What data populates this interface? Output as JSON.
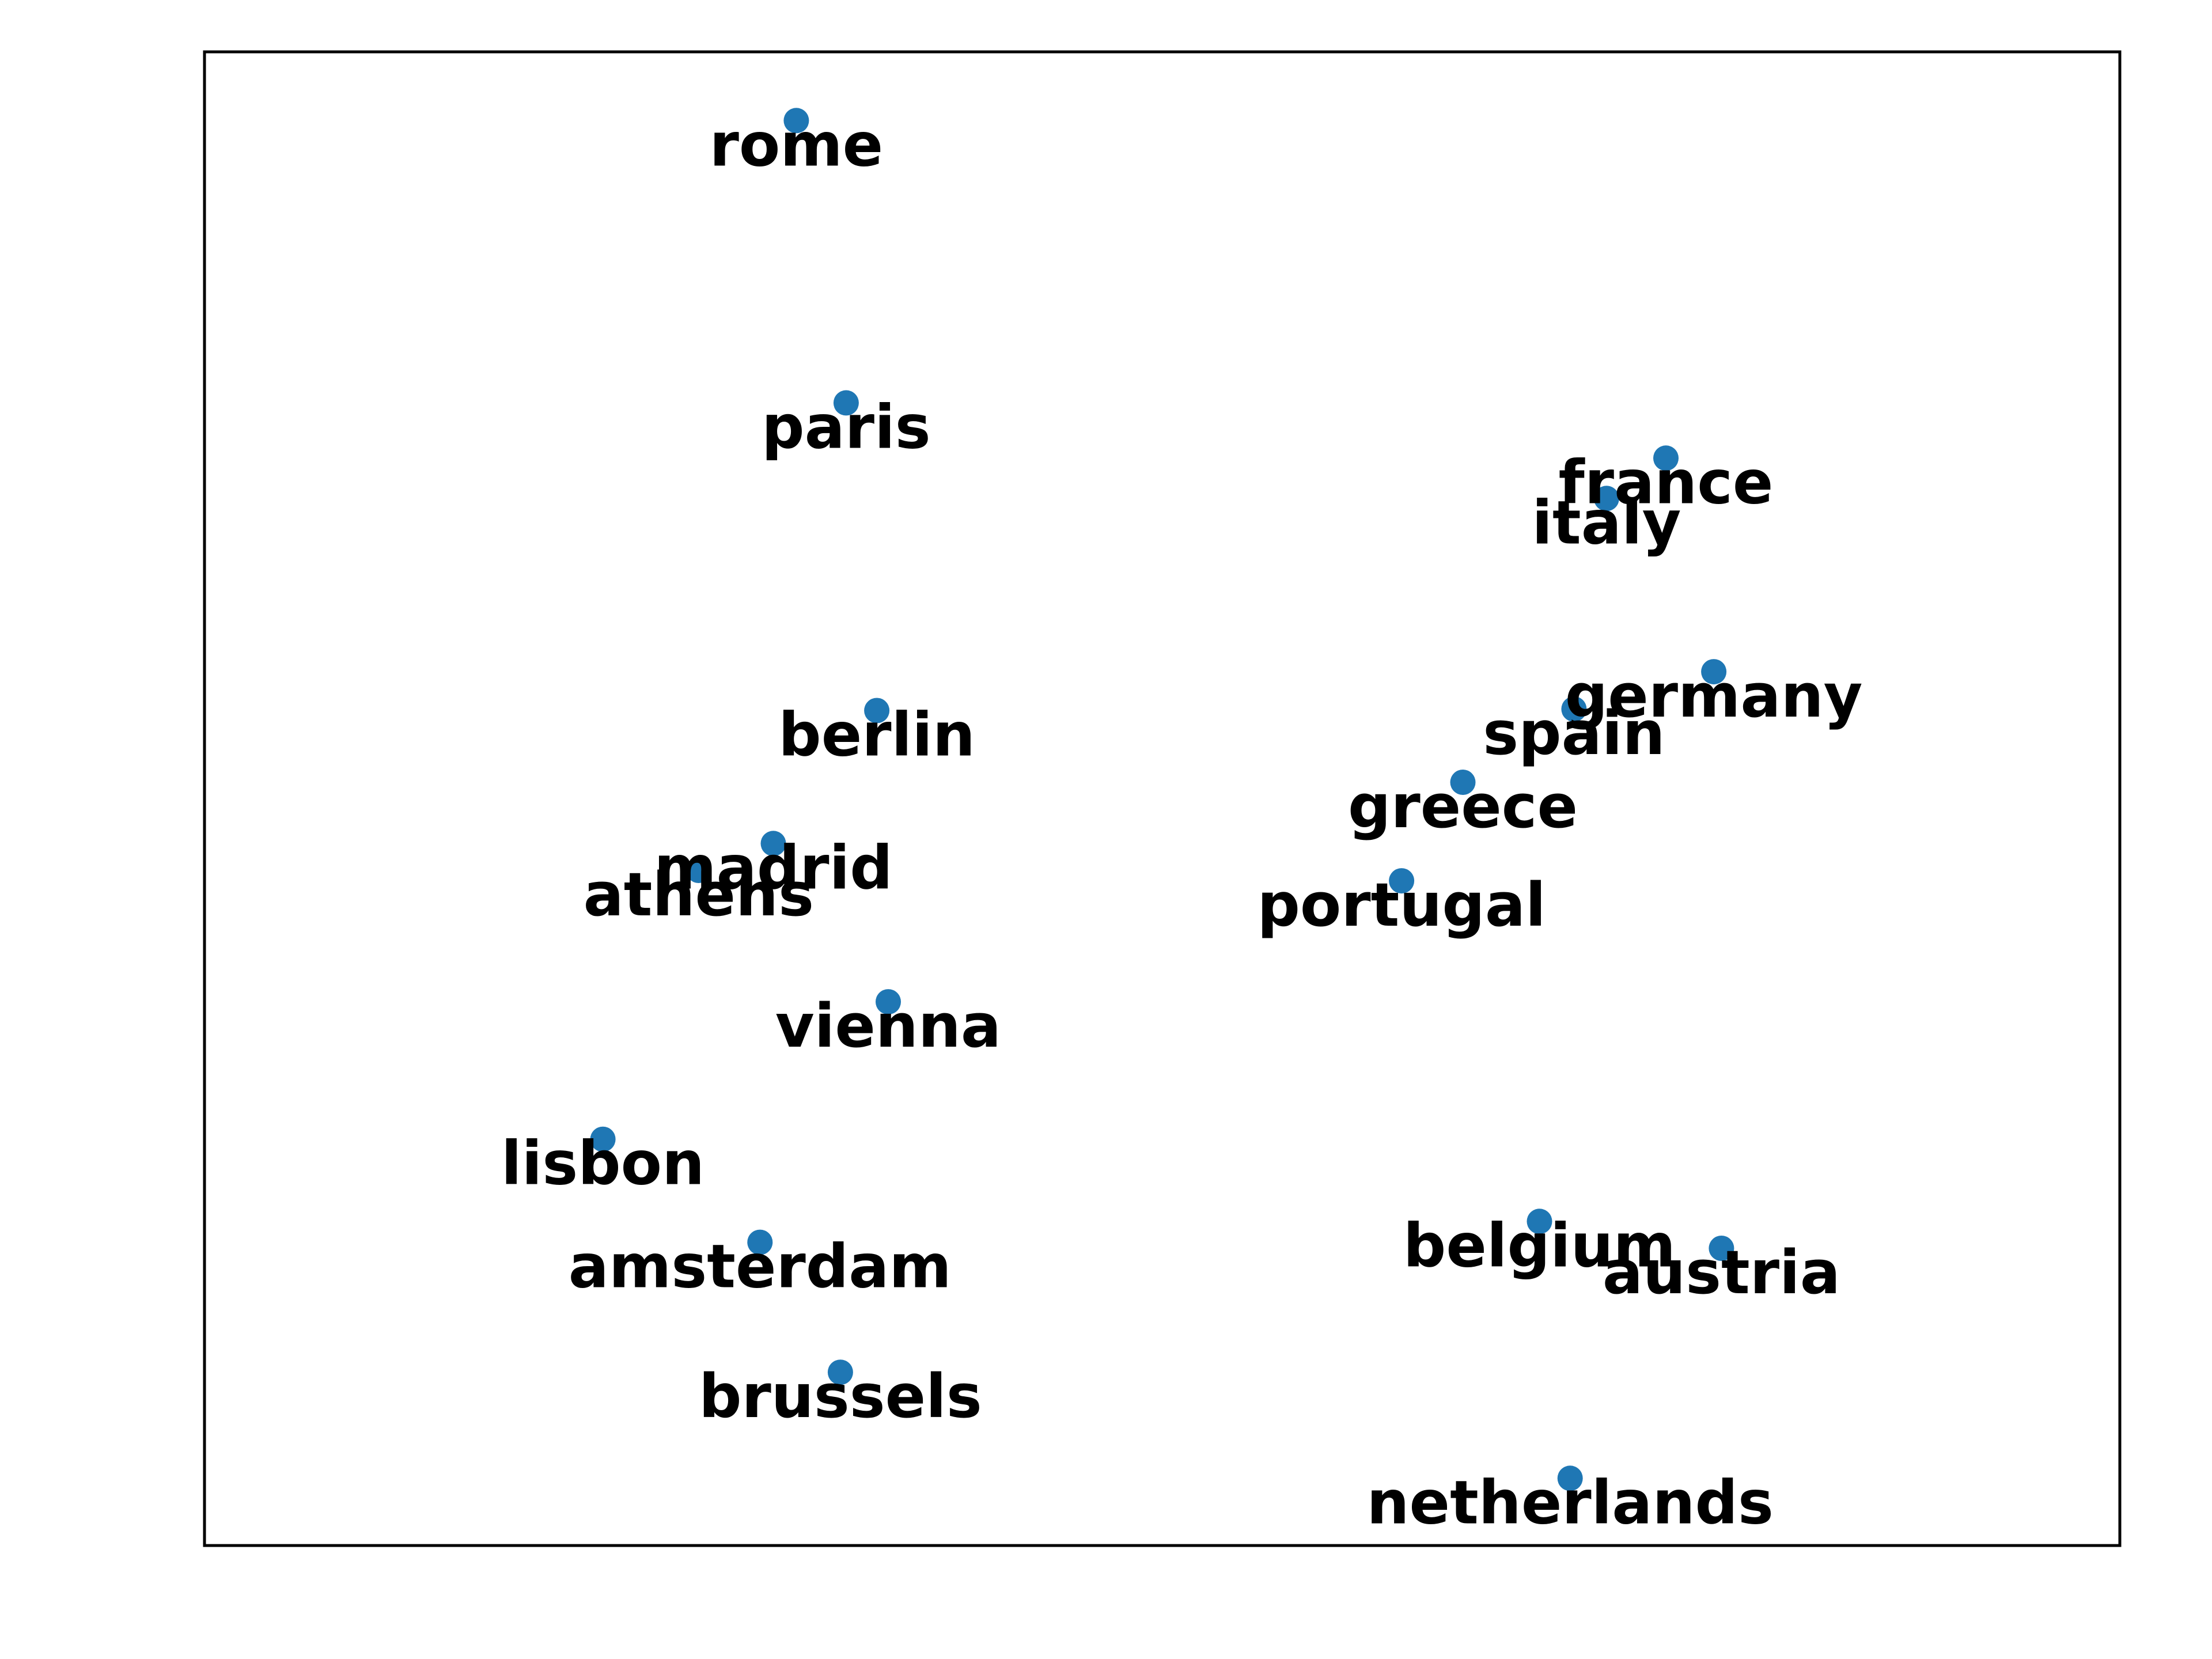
{
  "chart_data": {
    "type": "scatter",
    "title": "",
    "xlabel": "",
    "ylabel": "",
    "xlim": [
      0,
      100
    ],
    "ylim": [
      0,
      100
    ],
    "grid": false,
    "axis_ticks_visible": false,
    "marker_color": "#1f77b4",
    "label_color": "#000000",
    "points": [
      {
        "label": "rome",
        "x": 30.9,
        "y": 95.4
      },
      {
        "label": "paris",
        "x": 33.5,
        "y": 76.5
      },
      {
        "label": "france",
        "x": 76.3,
        "y": 72.8
      },
      {
        "label": "italy",
        "x": 73.2,
        "y": 70.1
      },
      {
        "label": "germany",
        "x": 78.8,
        "y": 58.5
      },
      {
        "label": "spain",
        "x": 71.5,
        "y": 56.0
      },
      {
        "label": "greece",
        "x": 65.7,
        "y": 51.1
      },
      {
        "label": "portugal",
        "x": 62.5,
        "y": 44.5
      },
      {
        "label": "berlin",
        "x": 35.1,
        "y": 55.9
      },
      {
        "label": "madrid",
        "x": 29.7,
        "y": 47.0
      },
      {
        "label": "athens",
        "x": 25.8,
        "y": 45.2
      },
      {
        "label": "vienna",
        "x": 35.7,
        "y": 36.4
      },
      {
        "label": "lisbon",
        "x": 20.8,
        "y": 27.2
      },
      {
        "label": "amsterdam",
        "x": 29.0,
        "y": 20.3
      },
      {
        "label": "brussels",
        "x": 33.2,
        "y": 11.6
      },
      {
        "label": "belgium",
        "x": 69.7,
        "y": 21.7
      },
      {
        "label": "austria",
        "x": 79.2,
        "y": 19.9
      },
      {
        "label": "netherlands",
        "x": 71.3,
        "y": 4.5
      }
    ]
  }
}
